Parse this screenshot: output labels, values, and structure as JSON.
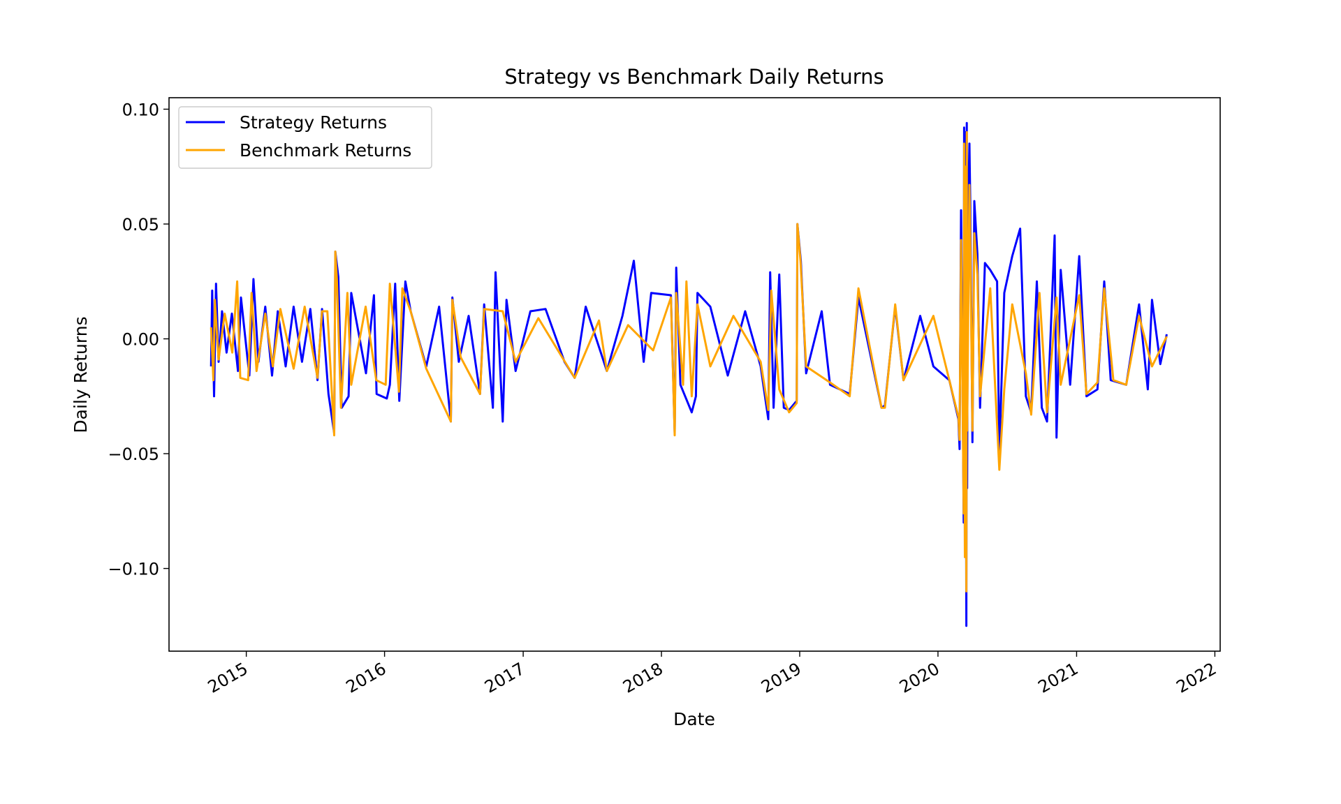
{
  "chart_data": {
    "type": "line",
    "title": "Strategy vs Benchmark Daily Returns",
    "xlabel": "Date",
    "ylabel": "Daily Returns",
    "x_range": [
      "2014-06-11",
      "2022-01-15"
    ],
    "ylim": [
      -0.136,
      0.105
    ],
    "y_ticks": [
      0.1,
      0.05,
      0.0,
      -0.05,
      -0.1
    ],
    "y_tick_labels": [
      "0.10",
      "0.05",
      "0.00",
      "−0.05",
      "−0.10"
    ],
    "x_ticks": [
      "2015-01-01",
      "2016-01-01",
      "2017-01-01",
      "2018-01-01",
      "2019-01-01",
      "2020-01-01",
      "2021-01-01",
      "2022-01-01"
    ],
    "x_tick_labels": [
      "2015",
      "2016",
      "2017",
      "2018",
      "2019",
      "2020",
      "2021",
      "2022"
    ],
    "grid": false,
    "legend": {
      "position": "upper-left"
    },
    "series": [
      {
        "name": "Strategy Returns",
        "color": "#0000ff",
        "points": [
          [
            "2014-09-30",
            -0.012
          ],
          [
            "2014-10-03",
            0.021
          ],
          [
            "2014-10-08",
            -0.025
          ],
          [
            "2014-10-13",
            0.024
          ],
          [
            "2014-10-20",
            -0.01
          ],
          [
            "2014-10-29",
            0.012
          ],
          [
            "2014-11-10",
            -0.006
          ],
          [
            "2014-11-24",
            0.011
          ],
          [
            "2014-12-10",
            -0.014
          ],
          [
            "2014-12-18",
            0.018
          ],
          [
            "2015-01-09",
            -0.016
          ],
          [
            "2015-01-20",
            0.026
          ],
          [
            "2015-02-02",
            -0.01
          ],
          [
            "2015-02-20",
            0.014
          ],
          [
            "2015-03-10",
            -0.016
          ],
          [
            "2015-03-25",
            0.012
          ],
          [
            "2015-04-15",
            -0.012
          ],
          [
            "2015-05-06",
            0.014
          ],
          [
            "2015-05-28",
            -0.01
          ],
          [
            "2015-06-19",
            0.013
          ],
          [
            "2015-07-08",
            -0.018
          ],
          [
            "2015-07-20",
            0.013
          ],
          [
            "2015-08-06",
            -0.024
          ],
          [
            "2015-08-21",
            -0.041
          ],
          [
            "2015-08-24",
            0.038
          ],
          [
            "2015-09-01",
            0.027
          ],
          [
            "2015-09-10",
            -0.03
          ],
          [
            "2015-09-28",
            -0.025
          ],
          [
            "2015-10-05",
            0.02
          ],
          [
            "2015-11-13",
            -0.015
          ],
          [
            "2015-12-04",
            0.019
          ],
          [
            "2015-12-11",
            -0.024
          ],
          [
            "2016-01-07",
            -0.026
          ],
          [
            "2016-01-15",
            -0.02
          ],
          [
            "2016-01-29",
            0.024
          ],
          [
            "2016-02-09",
            -0.027
          ],
          [
            "2016-02-25",
            0.025
          ],
          [
            "2016-03-10",
            0.012
          ],
          [
            "2016-04-20",
            -0.012
          ],
          [
            "2016-05-24",
            0.014
          ],
          [
            "2016-06-24",
            -0.036
          ],
          [
            "2016-06-28",
            0.018
          ],
          [
            "2016-07-15",
            -0.01
          ],
          [
            "2016-08-10",
            0.01
          ],
          [
            "2016-09-09",
            -0.024
          ],
          [
            "2016-09-20",
            0.015
          ],
          [
            "2016-10-13",
            -0.03
          ],
          [
            "2016-10-20",
            0.029
          ],
          [
            "2016-11-08",
            -0.036
          ],
          [
            "2016-11-18",
            0.017
          ],
          [
            "2016-12-12",
            -0.014
          ],
          [
            "2017-01-20",
            0.012
          ],
          [
            "2017-03-01",
            0.013
          ],
          [
            "2017-04-20",
            -0.01
          ],
          [
            "2017-05-17",
            -0.017
          ],
          [
            "2017-06-15",
            0.014
          ],
          [
            "2017-08-10",
            -0.014
          ],
          [
            "2017-09-20",
            0.01
          ],
          [
            "2017-10-20",
            0.034
          ],
          [
            "2017-11-15",
            -0.01
          ],
          [
            "2017-12-05",
            0.02
          ],
          [
            "2018-01-26",
            0.019
          ],
          [
            "2018-02-05",
            -0.041
          ],
          [
            "2018-02-09",
            0.031
          ],
          [
            "2018-02-20",
            -0.02
          ],
          [
            "2018-03-22",
            -0.032
          ],
          [
            "2018-04-02",
            -0.025
          ],
          [
            "2018-04-06",
            0.02
          ],
          [
            "2018-05-10",
            0.014
          ],
          [
            "2018-06-25",
            -0.016
          ],
          [
            "2018-08-10",
            0.012
          ],
          [
            "2018-09-20",
            -0.012
          ],
          [
            "2018-10-10",
            -0.035
          ],
          [
            "2018-10-15",
            0.029
          ],
          [
            "2018-10-24",
            -0.03
          ],
          [
            "2018-11-08",
            0.028
          ],
          [
            "2018-11-20",
            -0.03
          ],
          [
            "2018-12-04",
            -0.031
          ],
          [
            "2018-12-24",
            -0.027
          ],
          [
            "2018-12-26",
            0.05
          ],
          [
            "2019-01-04",
            0.034
          ],
          [
            "2019-01-18",
            -0.015
          ],
          [
            "2019-02-28",
            0.012
          ],
          [
            "2019-03-22",
            -0.02
          ],
          [
            "2019-05-13",
            -0.024
          ],
          [
            "2019-06-05",
            0.018
          ],
          [
            "2019-08-05",
            -0.03
          ],
          [
            "2019-08-14",
            -0.029
          ],
          [
            "2019-09-10",
            0.014
          ],
          [
            "2019-10-02",
            -0.018
          ],
          [
            "2019-11-15",
            0.01
          ],
          [
            "2019-12-20",
            -0.012
          ],
          [
            "2020-01-31",
            -0.018
          ],
          [
            "2020-02-24",
            -0.035
          ],
          [
            "2020-02-27",
            -0.048
          ],
          [
            "2020-03-02",
            0.056
          ],
          [
            "2020-03-06",
            -0.018
          ],
          [
            "2020-03-09",
            -0.08
          ],
          [
            "2020-03-10",
            0.092
          ],
          [
            "2020-03-12",
            -0.095
          ],
          [
            "2020-03-13",
            0.09
          ],
          [
            "2020-03-16",
            -0.125
          ],
          [
            "2020-03-17",
            0.094
          ],
          [
            "2020-03-18",
            -0.065
          ],
          [
            "2020-03-20",
            0.05
          ],
          [
            "2020-03-24",
            0.085
          ],
          [
            "2020-03-26",
            0.061
          ],
          [
            "2020-04-01",
            -0.045
          ],
          [
            "2020-04-06",
            0.06
          ],
          [
            "2020-04-14",
            0.037
          ],
          [
            "2020-04-21",
            -0.03
          ],
          [
            "2020-05-04",
            0.033
          ],
          [
            "2020-05-18",
            0.03
          ],
          [
            "2020-06-05",
            0.025
          ],
          [
            "2020-06-11",
            -0.05
          ],
          [
            "2020-06-24",
            0.02
          ],
          [
            "2020-07-15",
            0.036
          ],
          [
            "2020-08-05",
            0.048
          ],
          [
            "2020-08-20",
            -0.025
          ],
          [
            "2020-09-03",
            -0.032
          ],
          [
            "2020-09-18",
            0.025
          ],
          [
            "2020-10-01",
            -0.03
          ],
          [
            "2020-10-15",
            -0.036
          ],
          [
            "2020-11-04",
            0.045
          ],
          [
            "2020-11-09",
            -0.043
          ],
          [
            "2020-11-20",
            0.03
          ],
          [
            "2020-12-15",
            -0.02
          ],
          [
            "2021-01-08",
            0.036
          ],
          [
            "2021-01-27",
            -0.025
          ],
          [
            "2021-02-25",
            -0.022
          ],
          [
            "2021-03-15",
            0.025
          ],
          [
            "2021-04-01",
            -0.018
          ],
          [
            "2021-05-12",
            -0.02
          ],
          [
            "2021-06-15",
            0.015
          ],
          [
            "2021-07-08",
            -0.022
          ],
          [
            "2021-07-19",
            0.017
          ],
          [
            "2021-08-10",
            -0.011
          ],
          [
            "2021-08-27",
            0.002
          ]
        ]
      },
      {
        "name": "Benchmark Returns",
        "color": "#ffa500",
        "points": [
          [
            "2014-09-30",
            0.005
          ],
          [
            "2014-10-06",
            -0.018
          ],
          [
            "2014-10-10",
            0.017
          ],
          [
            "2014-10-20",
            -0.009
          ],
          [
            "2014-11-05",
            0.011
          ],
          [
            "2014-11-25",
            -0.006
          ],
          [
            "2014-12-08",
            0.025
          ],
          [
            "2014-12-16",
            -0.017
          ],
          [
            "2015-01-06",
            -0.018
          ],
          [
            "2015-01-15",
            0.02
          ],
          [
            "2015-01-28",
            -0.014
          ],
          [
            "2015-02-20",
            0.011
          ],
          [
            "2015-03-12",
            -0.012
          ],
          [
            "2015-04-01",
            0.013
          ],
          [
            "2015-05-06",
            -0.013
          ],
          [
            "2015-06-04",
            0.014
          ],
          [
            "2015-07-08",
            -0.017
          ],
          [
            "2015-07-20",
            0.012
          ],
          [
            "2015-08-03",
            0.012
          ],
          [
            "2015-08-21",
            -0.042
          ],
          [
            "2015-08-24",
            0.038
          ],
          [
            "2015-08-28",
            0.026
          ],
          [
            "2015-09-08",
            -0.03
          ],
          [
            "2015-09-25",
            0.02
          ],
          [
            "2015-10-05",
            -0.02
          ],
          [
            "2015-11-12",
            0.014
          ],
          [
            "2015-12-10",
            -0.018
          ],
          [
            "2016-01-04",
            -0.02
          ],
          [
            "2016-01-15",
            0.024
          ],
          [
            "2016-02-08",
            -0.023
          ],
          [
            "2016-02-17",
            0.022
          ],
          [
            "2016-03-10",
            0.012
          ],
          [
            "2016-04-20",
            -0.013
          ],
          [
            "2016-06-24",
            -0.036
          ],
          [
            "2016-06-28",
            0.017
          ],
          [
            "2016-07-20",
            -0.008
          ],
          [
            "2016-09-09",
            -0.024
          ],
          [
            "2016-09-20",
            0.013
          ],
          [
            "2016-11-08",
            0.012
          ],
          [
            "2016-12-12",
            -0.01
          ],
          [
            "2017-02-10",
            0.009
          ],
          [
            "2017-05-17",
            -0.017
          ],
          [
            "2017-07-20",
            0.008
          ],
          [
            "2017-08-10",
            -0.014
          ],
          [
            "2017-10-05",
            0.006
          ],
          [
            "2017-12-10",
            -0.005
          ],
          [
            "2018-01-26",
            0.018
          ],
          [
            "2018-02-05",
            -0.042
          ],
          [
            "2018-02-09",
            0.02
          ],
          [
            "2018-02-27",
            -0.02
          ],
          [
            "2018-03-08",
            0.025
          ],
          [
            "2018-03-22",
            -0.025
          ],
          [
            "2018-04-06",
            0.015
          ],
          [
            "2018-05-10",
            -0.012
          ],
          [
            "2018-07-10",
            0.01
          ],
          [
            "2018-09-20",
            -0.01
          ],
          [
            "2018-10-10",
            -0.031
          ],
          [
            "2018-10-18",
            0.021
          ],
          [
            "2018-11-08",
            -0.022
          ],
          [
            "2018-12-04",
            -0.032
          ],
          [
            "2018-12-24",
            -0.028
          ],
          [
            "2018-12-26",
            0.05
          ],
          [
            "2019-01-03",
            0.034
          ],
          [
            "2019-01-18",
            -0.012
          ],
          [
            "2019-03-22",
            -0.019
          ],
          [
            "2019-05-13",
            -0.025
          ],
          [
            "2019-06-05",
            0.022
          ],
          [
            "2019-08-05",
            -0.03
          ],
          [
            "2019-08-14",
            -0.03
          ],
          [
            "2019-09-10",
            0.015
          ],
          [
            "2019-10-02",
            -0.018
          ],
          [
            "2019-12-20",
            0.01
          ],
          [
            "2020-01-31",
            -0.018
          ],
          [
            "2020-02-24",
            -0.034
          ],
          [
            "2020-02-27",
            -0.044
          ],
          [
            "2020-03-02",
            0.043
          ],
          [
            "2020-03-09",
            -0.076
          ],
          [
            "2020-03-10",
            0.085
          ],
          [
            "2020-03-12",
            -0.095
          ],
          [
            "2020-03-13",
            0.075
          ],
          [
            "2020-03-16",
            -0.11
          ],
          [
            "2020-03-17",
            0.09
          ],
          [
            "2020-03-18",
            -0.04
          ],
          [
            "2020-03-24",
            0.067
          ],
          [
            "2020-03-26",
            0.045
          ],
          [
            "2020-04-01",
            -0.04
          ],
          [
            "2020-04-06",
            0.046
          ],
          [
            "2020-04-14",
            0.028
          ],
          [
            "2020-04-21",
            -0.025
          ],
          [
            "2020-05-18",
            0.022
          ],
          [
            "2020-06-11",
            -0.057
          ],
          [
            "2020-06-24",
            -0.022
          ],
          [
            "2020-07-15",
            0.015
          ],
          [
            "2020-08-20",
            -0.015
          ],
          [
            "2020-09-03",
            -0.033
          ],
          [
            "2020-09-25",
            0.02
          ],
          [
            "2020-10-15",
            -0.032
          ],
          [
            "2020-11-09",
            0.018
          ],
          [
            "2020-11-20",
            -0.02
          ],
          [
            "2021-01-08",
            0.019
          ],
          [
            "2021-01-27",
            -0.024
          ],
          [
            "2021-02-25",
            -0.019
          ],
          [
            "2021-03-15",
            0.022
          ],
          [
            "2021-04-08",
            -0.018
          ],
          [
            "2021-05-12",
            -0.02
          ],
          [
            "2021-06-15",
            0.01
          ],
          [
            "2021-07-19",
            -0.012
          ],
          [
            "2021-08-27",
            0.001
          ]
        ]
      }
    ]
  }
}
